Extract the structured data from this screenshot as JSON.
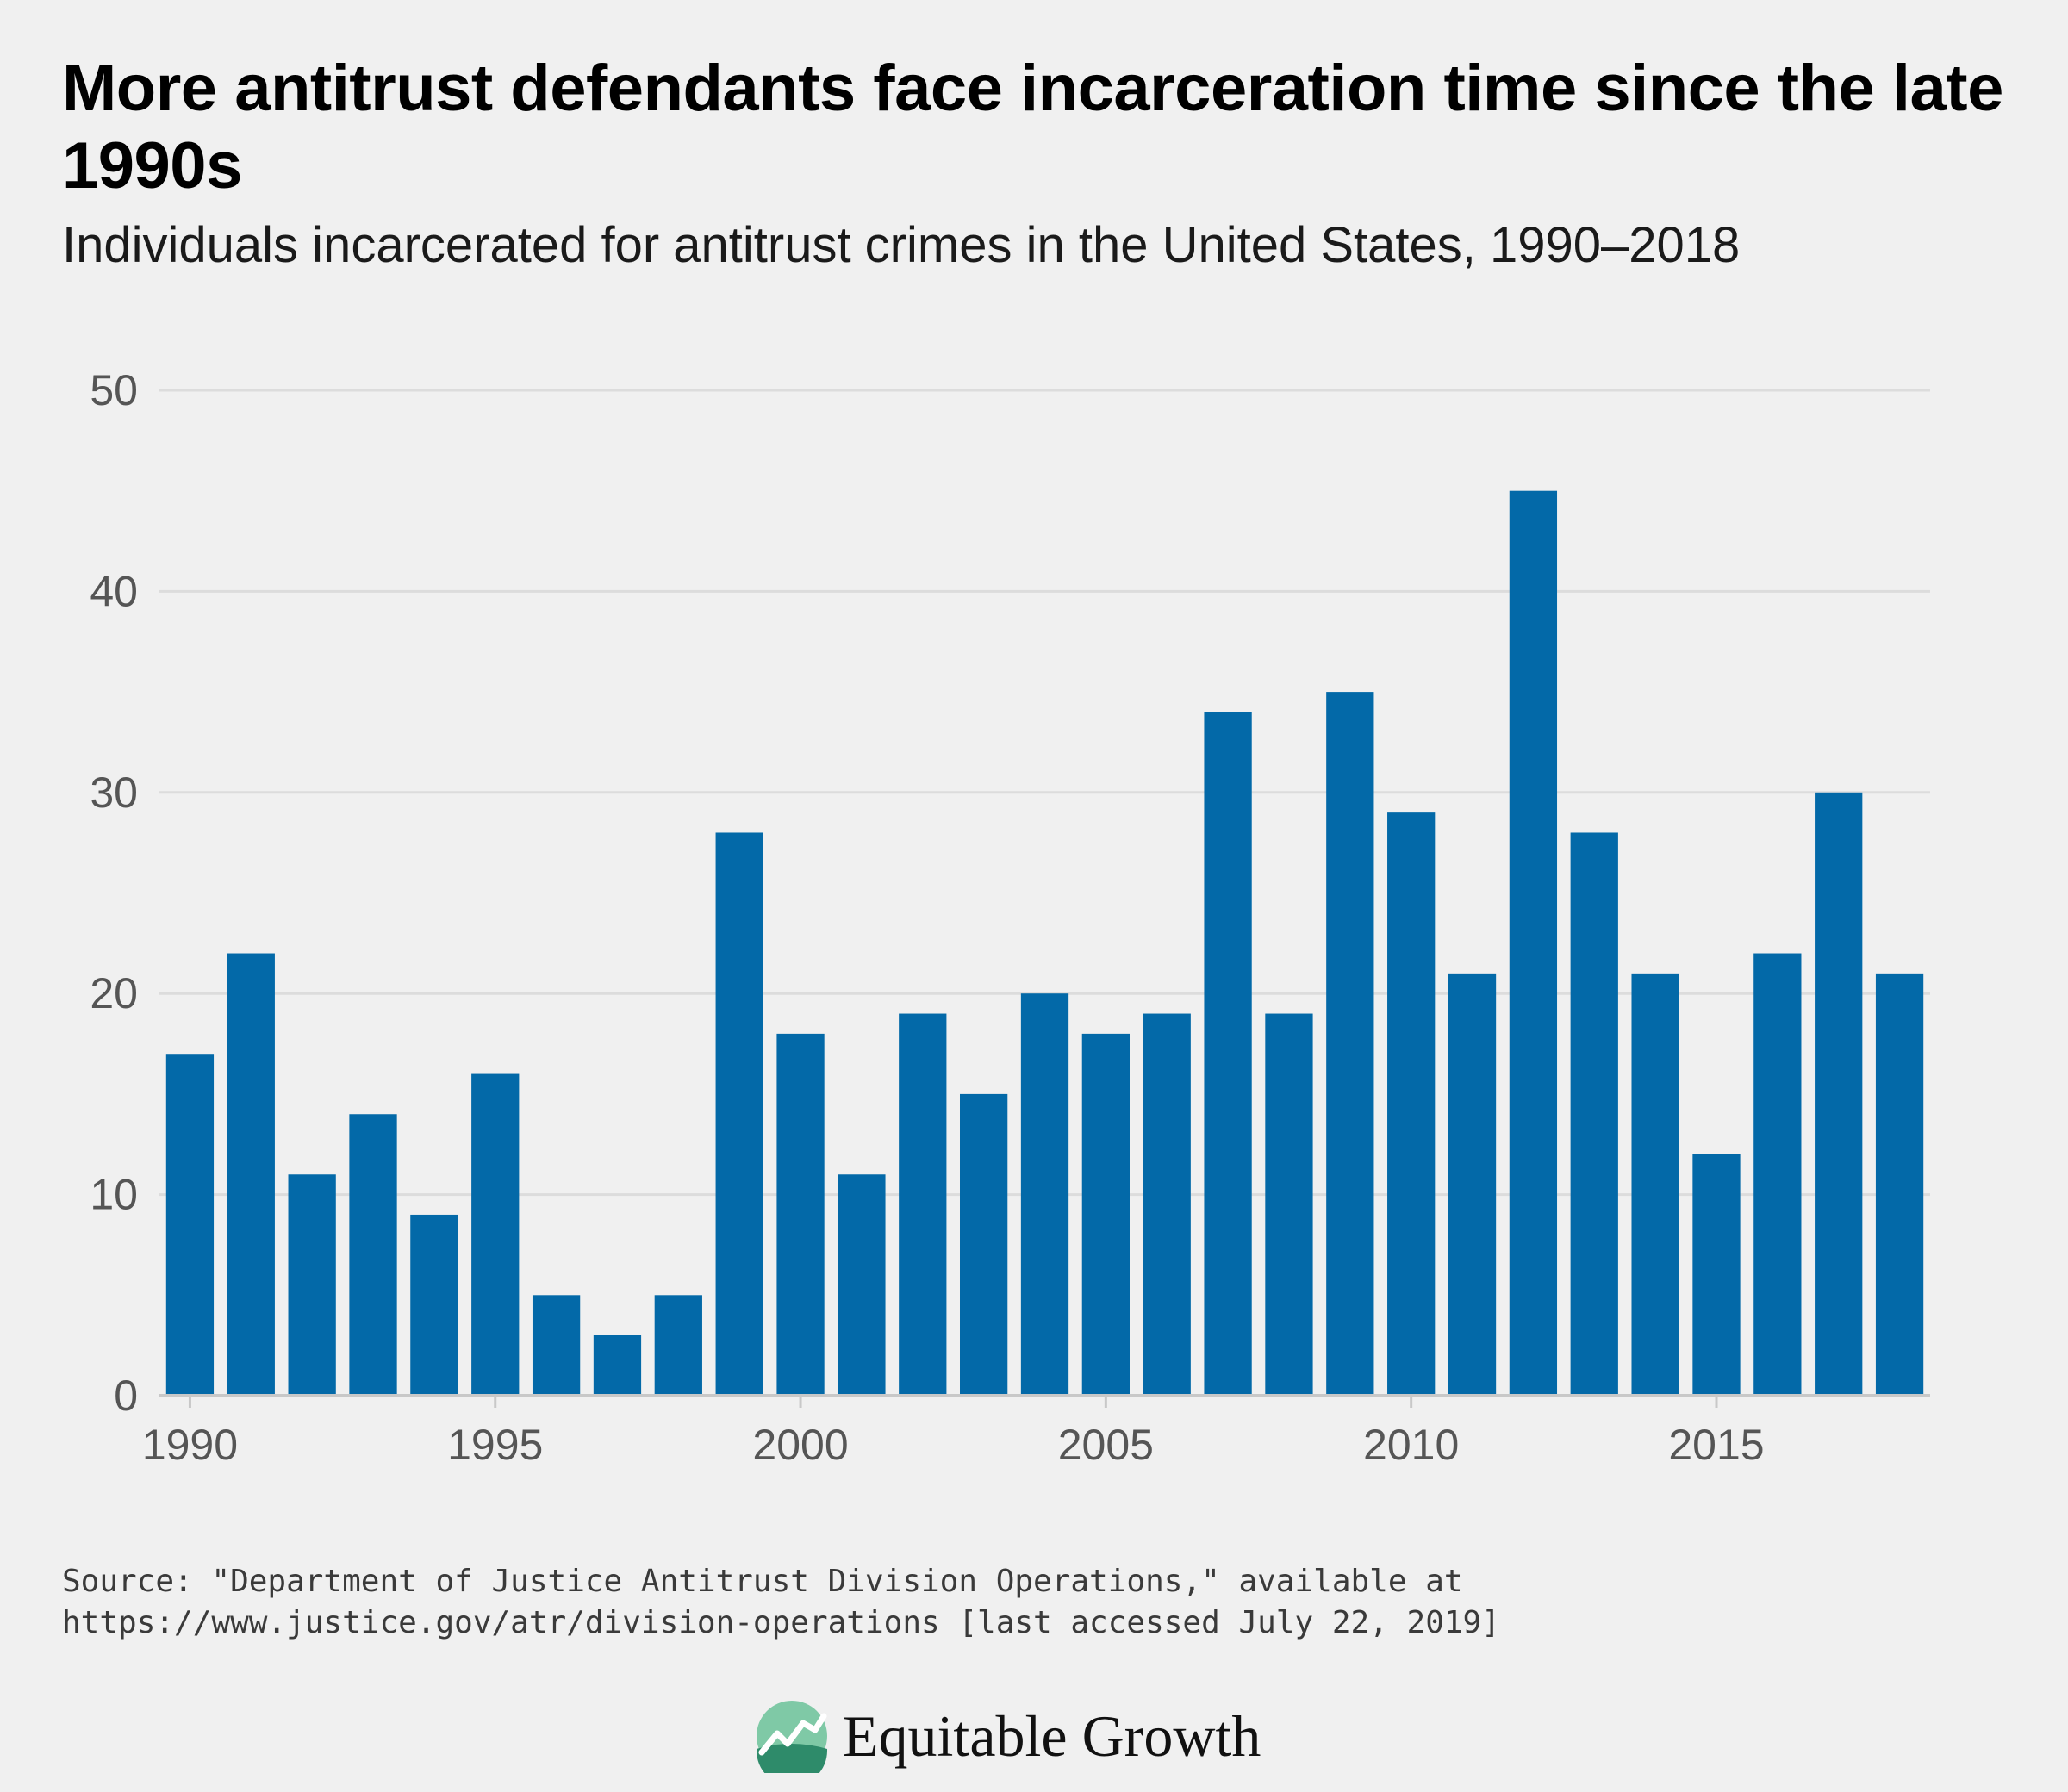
{
  "title": "More antitrust defendants face incarceration time since the late 1990s",
  "subtitle": "Individuals incarcerated for antitrust crimes in the United States, 1990–2018",
  "source_line1": "Source: \"Department of Justice Antitrust Division Operations,\" available at",
  "source_line2": "https://www.justice.gov/atr/division-operations [last accessed July 22, 2019]",
  "logo": {
    "name": "Equitable Growth",
    "icon": "rising-line-globe-icon"
  },
  "colors": {
    "bar": "#0369a8",
    "grid": "#dcdcdc",
    "axis": "#c8c8c8",
    "background": "#f0f0f0"
  },
  "chart_data": {
    "type": "bar",
    "title": "More antitrust defendants face incarceration time since the late 1990s",
    "subtitle": "Individuals incarcerated for antitrust crimes in the United States, 1990–2018",
    "xlabel": "",
    "ylabel": "",
    "categories": [
      1990,
      1991,
      1992,
      1993,
      1994,
      1995,
      1996,
      1997,
      1998,
      1999,
      2000,
      2001,
      2002,
      2003,
      2004,
      2005,
      2006,
      2007,
      2008,
      2009,
      2010,
      2011,
      2012,
      2013,
      2014,
      2015,
      2016,
      2017,
      2018
    ],
    "values": [
      17,
      22,
      11,
      14,
      9,
      16,
      5,
      3,
      5,
      28,
      18,
      11,
      19,
      15,
      20,
      18,
      19,
      34,
      19,
      35,
      29,
      21,
      45,
      28,
      21,
      12,
      22,
      30,
      21
    ],
    "ylim": [
      0,
      50
    ],
    "yticks": [
      0,
      10,
      20,
      30,
      40,
      50
    ],
    "xticks": [
      1990,
      1995,
      2000,
      2005,
      2010,
      2015
    ],
    "grid": true,
    "legend": "none"
  }
}
